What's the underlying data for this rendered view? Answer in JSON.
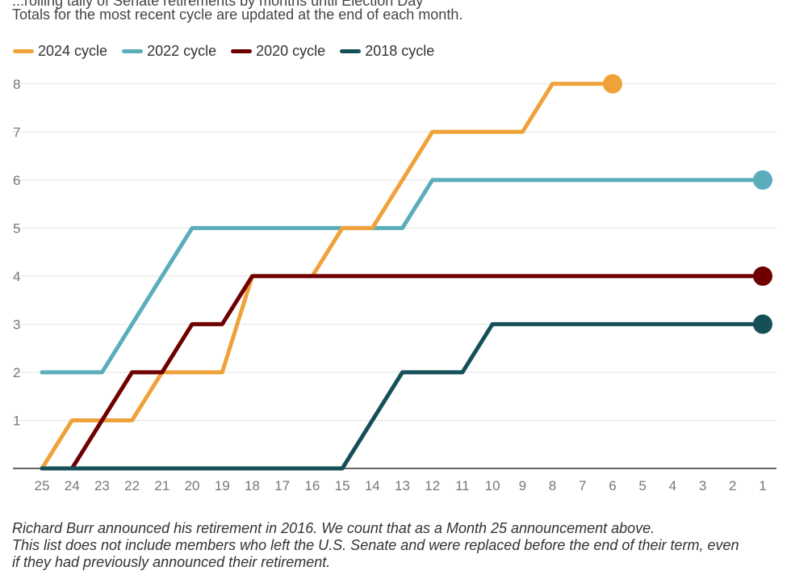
{
  "header": {
    "clipped_title": "...rolling tally of Senate retirements by months until Election Day",
    "subtitle": "Totals for the most recent cycle are updated at the end of each month."
  },
  "chart_data": {
    "type": "line",
    "xlim": [
      25,
      1
    ],
    "ylim": [
      0,
      8.4
    ],
    "x_ticks": [
      25,
      24,
      23,
      22,
      21,
      20,
      19,
      18,
      17,
      16,
      15,
      14,
      13,
      12,
      11,
      10,
      9,
      8,
      7,
      6,
      5,
      4,
      3,
      2,
      1
    ],
    "y_ticks": [
      1,
      2,
      3,
      4,
      5,
      6,
      7,
      8
    ],
    "grid": true,
    "legend_position": "top-left",
    "series": [
      {
        "name": "2024 cycle",
        "color": "#f0a23a",
        "points": [
          [
            25,
            0
          ],
          [
            24,
            1
          ],
          [
            23,
            1
          ],
          [
            22,
            1
          ],
          [
            21,
            2
          ],
          [
            20,
            2
          ],
          [
            19,
            2
          ],
          [
            18,
            4
          ],
          [
            17,
            4
          ],
          [
            16,
            4
          ],
          [
            15,
            5
          ],
          [
            14,
            5
          ],
          [
            13,
            6
          ],
          [
            12,
            7
          ],
          [
            11,
            7
          ],
          [
            10,
            7
          ],
          [
            9,
            7
          ],
          [
            8,
            8
          ],
          [
            7,
            8
          ],
          [
            6,
            8
          ]
        ]
      },
      {
        "name": "2022 cycle",
        "color": "#5aadba",
        "points": [
          [
            25,
            2
          ],
          [
            24,
            2
          ],
          [
            23,
            2
          ],
          [
            22,
            3
          ],
          [
            21,
            4
          ],
          [
            20,
            5
          ],
          [
            19,
            5
          ],
          [
            18,
            5
          ],
          [
            17,
            5
          ],
          [
            16,
            5
          ],
          [
            15,
            5
          ],
          [
            14,
            5
          ],
          [
            13,
            5
          ],
          [
            12,
            6
          ],
          [
            11,
            6
          ],
          [
            10,
            6
          ],
          [
            9,
            6
          ],
          [
            8,
            6
          ],
          [
            7,
            6
          ],
          [
            6,
            6
          ],
          [
            5,
            6
          ],
          [
            4,
            6
          ],
          [
            3,
            6
          ],
          [
            2,
            6
          ],
          [
            1,
            6
          ]
        ]
      },
      {
        "name": "2020 cycle",
        "color": "#6e0000",
        "points": [
          [
            25,
            0
          ],
          [
            24,
            0
          ],
          [
            23,
            1
          ],
          [
            22,
            2
          ],
          [
            21,
            2
          ],
          [
            20,
            3
          ],
          [
            19,
            3
          ],
          [
            18,
            4
          ],
          [
            17,
            4
          ],
          [
            16,
            4
          ],
          [
            15,
            4
          ],
          [
            14,
            4
          ],
          [
            13,
            4
          ],
          [
            12,
            4
          ],
          [
            11,
            4
          ],
          [
            10,
            4
          ],
          [
            9,
            4
          ],
          [
            8,
            4
          ],
          [
            7,
            4
          ],
          [
            6,
            4
          ],
          [
            5,
            4
          ],
          [
            4,
            4
          ],
          [
            3,
            4
          ],
          [
            2,
            4
          ],
          [
            1,
            4
          ]
        ]
      },
      {
        "name": "2018 cycle",
        "color": "#154f58",
        "points": [
          [
            25,
            0
          ],
          [
            24,
            0
          ],
          [
            23,
            0
          ],
          [
            22,
            0
          ],
          [
            21,
            0
          ],
          [
            20,
            0
          ],
          [
            19,
            0
          ],
          [
            18,
            0
          ],
          [
            17,
            0
          ],
          [
            16,
            0
          ],
          [
            15,
            0
          ],
          [
            14,
            1
          ],
          [
            13,
            2
          ],
          [
            12,
            2
          ],
          [
            11,
            2
          ],
          [
            10,
            3
          ],
          [
            9,
            3
          ],
          [
            8,
            3
          ],
          [
            7,
            3
          ],
          [
            6,
            3
          ],
          [
            5,
            3
          ],
          [
            4,
            3
          ],
          [
            3,
            3
          ],
          [
            2,
            3
          ],
          [
            1,
            3
          ]
        ]
      }
    ]
  },
  "notes": {
    "line1": "Richard Burr announced his retirement in 2016. We count that as a Month 25 announcement above.",
    "line2": "This list does not include members who left the U.S. Senate and were replaced before the end of their term, even",
    "line3": "if they had previously announced their retirement."
  }
}
